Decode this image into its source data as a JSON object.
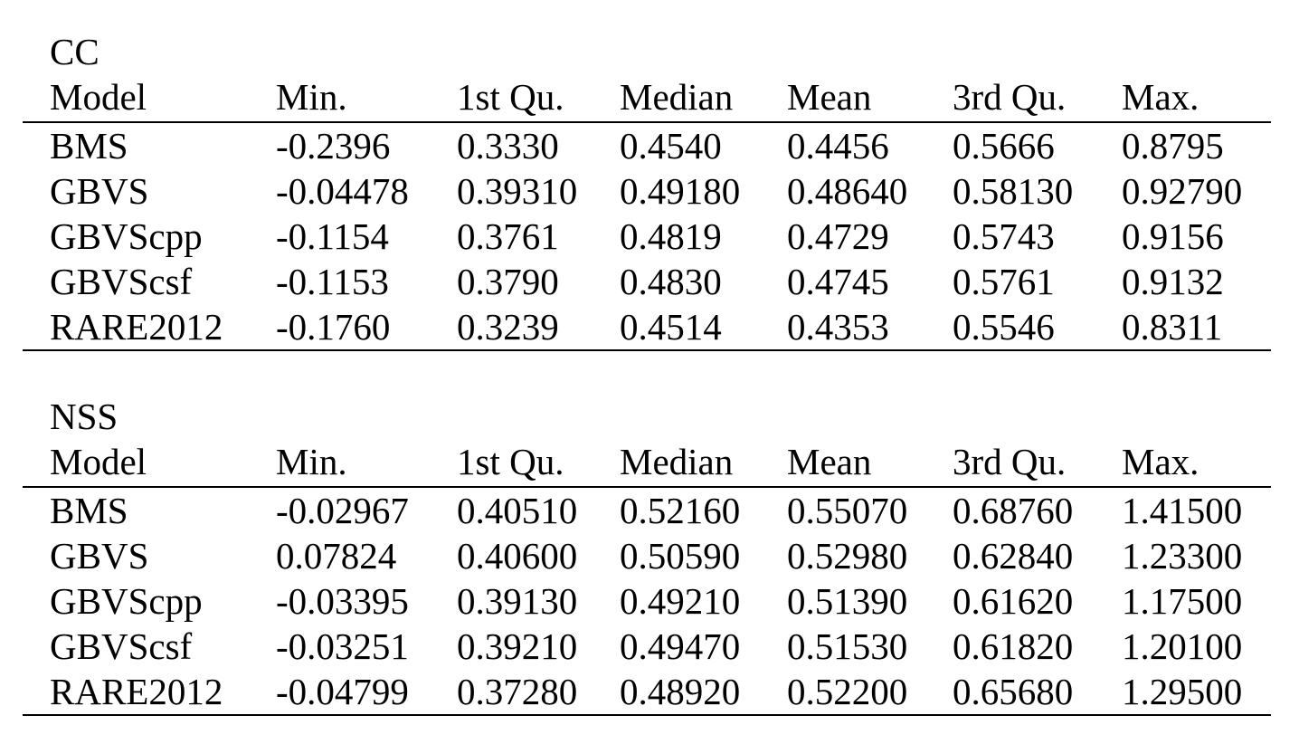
{
  "page": {
    "background_color": "#ffffff",
    "text_color": "#000000",
    "rule_color": "#000000"
  },
  "tables": [
    {
      "title": "CC",
      "columns": [
        "Model",
        "Min.",
        "1st Qu.",
        "Median",
        "Mean",
        "3rd Qu.",
        "Max."
      ],
      "rows": [
        [
          "BMS",
          "-0.2396",
          "0.3330",
          "0.4540",
          "0.4456",
          "0.5666",
          "0.8795"
        ],
        [
          "GBVS",
          "-0.04478",
          "0.39310",
          "0.49180",
          "0.48640",
          "0.58130",
          "0.92790"
        ],
        [
          "GBVScpp",
          "-0.1154",
          "0.3761",
          "0.4819",
          "0.4729",
          "0.5743",
          "0.9156"
        ],
        [
          "GBVScsf",
          "-0.1153",
          "0.3790",
          "0.4830",
          "0.4745",
          "0.5761",
          "0.9132"
        ],
        [
          "RARE2012",
          "-0.1760",
          "0.3239",
          "0.4514",
          "0.4353",
          "0.5546",
          "0.8311"
        ]
      ]
    },
    {
      "title": "NSS",
      "columns": [
        "Model",
        "Min.",
        "1st Qu.",
        "Median",
        "Mean",
        "3rd Qu.",
        "Max."
      ],
      "rows": [
        [
          "BMS",
          "-0.02967",
          "0.40510",
          "0.52160",
          "0.55070",
          "0.68760",
          "1.41500"
        ],
        [
          "GBVS",
          "0.07824",
          "0.40600",
          "0.50590",
          "0.52980",
          "0.62840",
          "1.23300"
        ],
        [
          "GBVScpp",
          "-0.03395",
          "0.39130",
          "0.49210",
          "0.51390",
          "0.61620",
          "1.17500"
        ],
        [
          "GBVScsf",
          "-0.03251",
          "0.39210",
          "0.49470",
          "0.51530",
          "0.61820",
          "1.20100"
        ],
        [
          "RARE2012",
          "-0.04799",
          "0.37280",
          "0.48920",
          "0.52200",
          "0.65680",
          "1.29500"
        ]
      ]
    }
  ]
}
